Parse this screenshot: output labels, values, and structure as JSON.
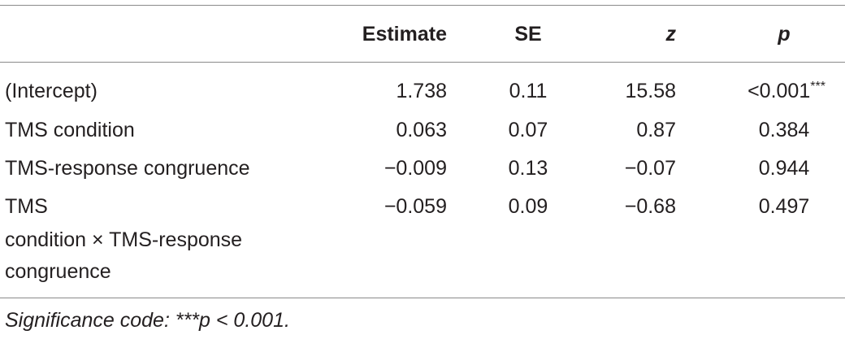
{
  "table": {
    "headers": {
      "estimate": "Estimate",
      "se": "SE",
      "z": "z",
      "p": "p"
    },
    "rows": [
      {
        "label": "(Intercept)",
        "estimate": "1.738",
        "se": "0.11",
        "z": "15.58",
        "p": "<0.001",
        "p_sup": "***"
      },
      {
        "label": "TMS condition",
        "estimate": "0.063",
        "se": "0.07",
        "z": "0.87",
        "p": "0.384",
        "p_sup": ""
      },
      {
        "label": "TMS-response congruence",
        "estimate": "−0.009",
        "se": "0.13",
        "z": "−0.07",
        "p": "0.944",
        "p_sup": ""
      },
      {
        "label_lines": [
          "TMS",
          "condition × TMS-response",
          "congruence"
        ],
        "estimate": "−0.059",
        "se": "0.09",
        "z": "−0.68",
        "p": "0.497",
        "p_sup": ""
      }
    ]
  },
  "footnote": "Significance code: ***p < 0.001."
}
